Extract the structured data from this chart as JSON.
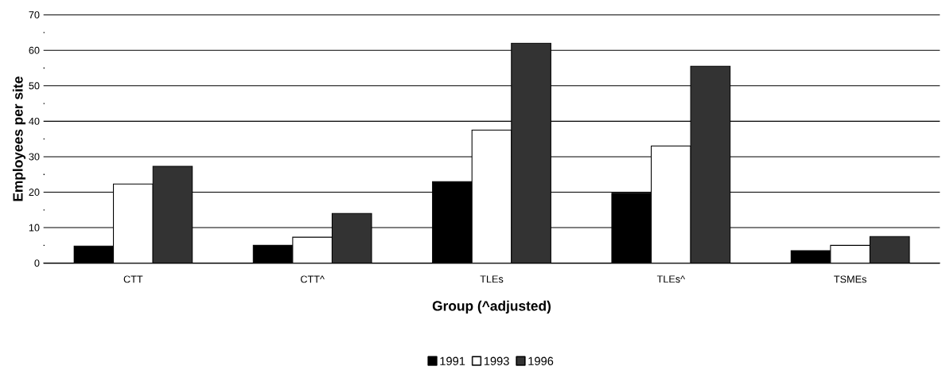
{
  "chart_data": {
    "type": "bar",
    "xlabel": "Group (^adjusted)",
    "ylabel": "Employees per site",
    "categories": [
      "CTT",
      "CTT^",
      "TLEs",
      "TLEs^",
      "TSMEs"
    ],
    "series": [
      {
        "name": "1991",
        "color": "#000000",
        "values": [
          4.8,
          5,
          23,
          19.7,
          3.5
        ]
      },
      {
        "name": "1993",
        "color": "#ffffff",
        "values": [
          22.3,
          7.3,
          37.5,
          33,
          5
        ]
      },
      {
        "name": "1996",
        "color": "#333333",
        "values": [
          27.3,
          14,
          62,
          55.5,
          7.5
        ]
      }
    ],
    "ylim": [
      0,
      70
    ],
    "yticks": [
      0,
      10,
      20,
      30,
      40,
      50,
      60,
      70
    ],
    "grid": "y",
    "legend": "bottom"
  }
}
